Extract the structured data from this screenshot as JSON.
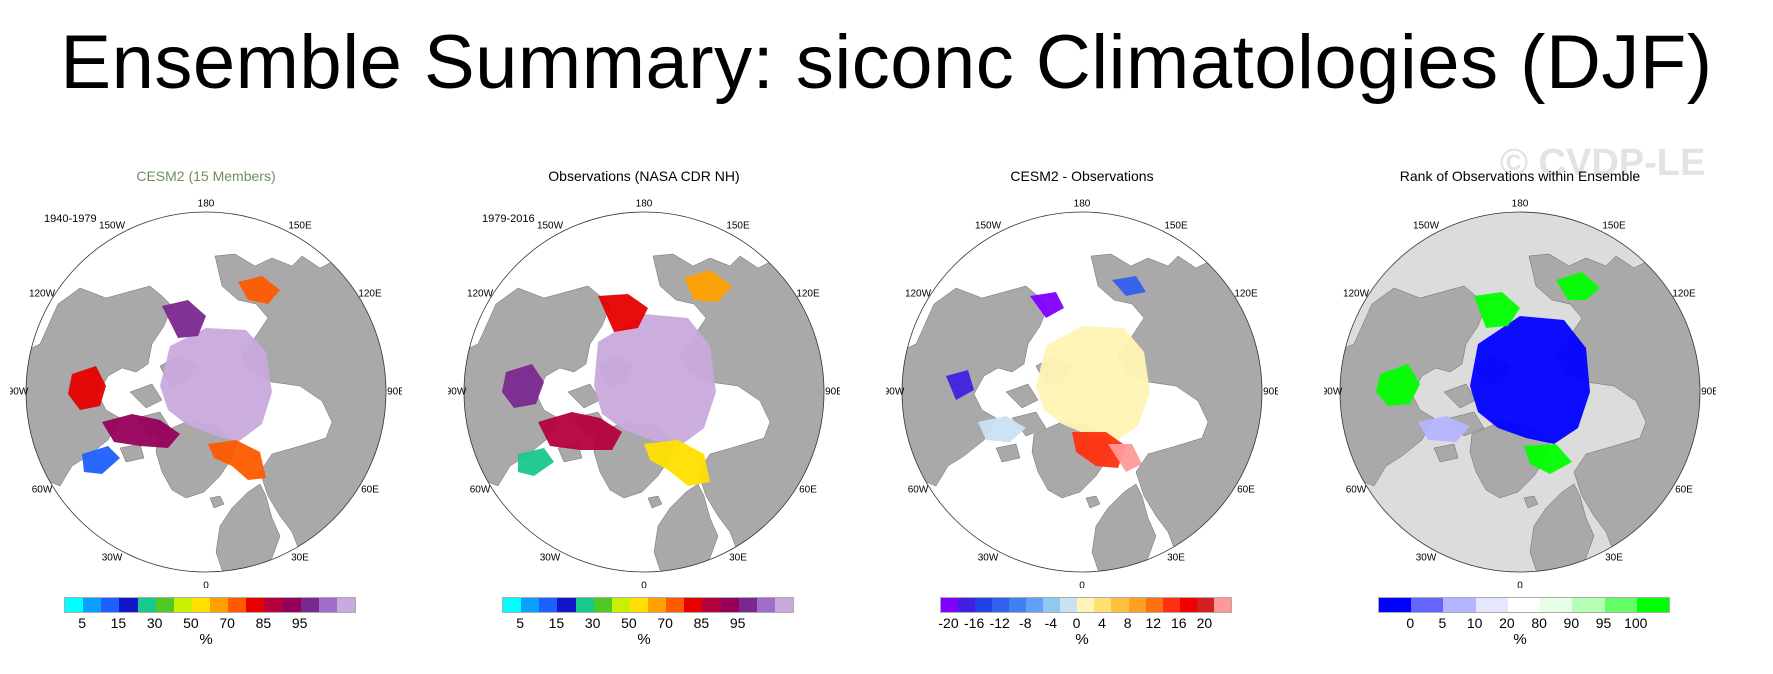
{
  "title": "Ensemble Summary: siconc Climatologies (DJF)",
  "watermark": "© CVDP-LE",
  "longitude_labels": {
    "top": "180",
    "tr": "150E",
    "rt": "120E",
    "right": "90E",
    "rb": "60E",
    "br": "30E",
    "bottom": "0",
    "bl": "30W",
    "lb": "60W",
    "left": "90W",
    "lt": "120W",
    "tl": "150W"
  },
  "colors": {
    "land": "#a9a9a9",
    "ocean": "#ffffff",
    "seq_palette": [
      "#00ffff",
      "#0aa0ff",
      "#1e5fff",
      "#1414c8",
      "#19c88c",
      "#50c828",
      "#c8f000",
      "#ffe000",
      "#ffa000",
      "#ff5a00",
      "#e60000",
      "#b4003c",
      "#96005a",
      "#7a2890",
      "#a06ec8",
      "#c8aadc"
    ],
    "diff_palette": [
      "#8000ff",
      "#4020e0",
      "#2040e8",
      "#3060ee",
      "#4080f0",
      "#60a0f8",
      "#90c8f0",
      "#c8e2f4",
      "#fff4b4",
      "#ffe070",
      "#ffc040",
      "#ffa020",
      "#ff7010",
      "#ff3010",
      "#f00000",
      "#d02020",
      "#ff9999"
    ],
    "rank_palette": [
      "#0000ff",
      "#6464ff",
      "#b4b4ff",
      "#e6e6ff",
      "#ffffff",
      "#e6ffe6",
      "#b4ffb4",
      "#64ff64",
      "#00ff00"
    ]
  },
  "panels": [
    {
      "id": "cesm2",
      "title": "CESM2 (15 Members)",
      "period": "1940-1979",
      "colorbar": {
        "labels": [
          "5",
          "15",
          "30",
          "50",
          "70",
          "85",
          "95"
        ],
        "unit": "%"
      }
    },
    {
      "id": "obs",
      "title": "Observations (NASA CDR NH)",
      "period": "1979-2016",
      "colorbar": {
        "labels": [
          "5",
          "15",
          "30",
          "50",
          "70",
          "85",
          "95"
        ],
        "unit": "%"
      }
    },
    {
      "id": "diff",
      "title": "CESM2 - Observations",
      "period": "",
      "colorbar": {
        "labels": [
          "-20",
          "-16",
          "-12",
          "-8",
          "-4",
          "0",
          "4",
          "8",
          "12",
          "16",
          "20"
        ],
        "unit": "%"
      }
    },
    {
      "id": "rank",
      "title": "Rank of Observations within Ensemble",
      "period": "",
      "colorbar": {
        "labels": [
          "0",
          "5",
          "10",
          "20",
          "80",
          "90",
          "95",
          "100"
        ],
        "unit": "%"
      }
    }
  ]
}
